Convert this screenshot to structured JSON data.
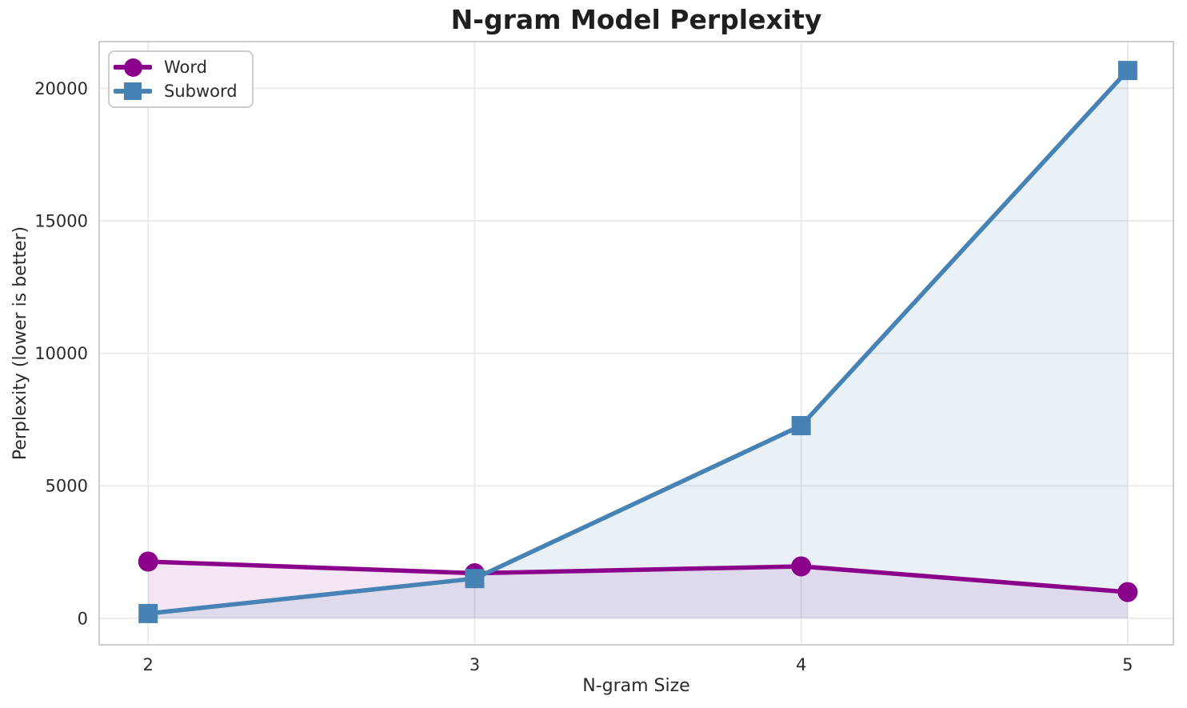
{
  "chart_data": {
    "type": "line",
    "title": "N-gram Model Perplexity",
    "xlabel": "N-gram Size",
    "ylabel": "Perplexity (lower is better)",
    "x": [
      2,
      3,
      4,
      5
    ],
    "x_tick_labels": [
      "2",
      "3",
      "4",
      "5"
    ],
    "y_ticks": [
      0,
      5000,
      10000,
      15000,
      20000
    ],
    "y_tick_labels": [
      "0",
      "5000",
      "10000",
      "15000",
      "20000"
    ],
    "xlim": [
      1.85,
      5.14
    ],
    "ylim": [
      -1000,
      21760
    ],
    "grid": true,
    "legend_position": "upper left",
    "series": [
      {
        "name": "Word",
        "color": "#8B008B",
        "marker": "circle",
        "fill_to_zero": true,
        "fill_opacity": 0.1,
        "values": [
          2140,
          1700,
          1960,
          990
        ]
      },
      {
        "name": "Subword",
        "color": "#4682B4",
        "marker": "square",
        "fill_to_zero": true,
        "fill_opacity": 0.12,
        "values": [
          180,
          1500,
          7270,
          20670
        ]
      }
    ],
    "colors": {
      "grid": "#e9e9e9",
      "spine": "#cfcfcf",
      "text": "#2b2b2b",
      "title": "#1f1f1f",
      "background": "#ffffff"
    }
  }
}
